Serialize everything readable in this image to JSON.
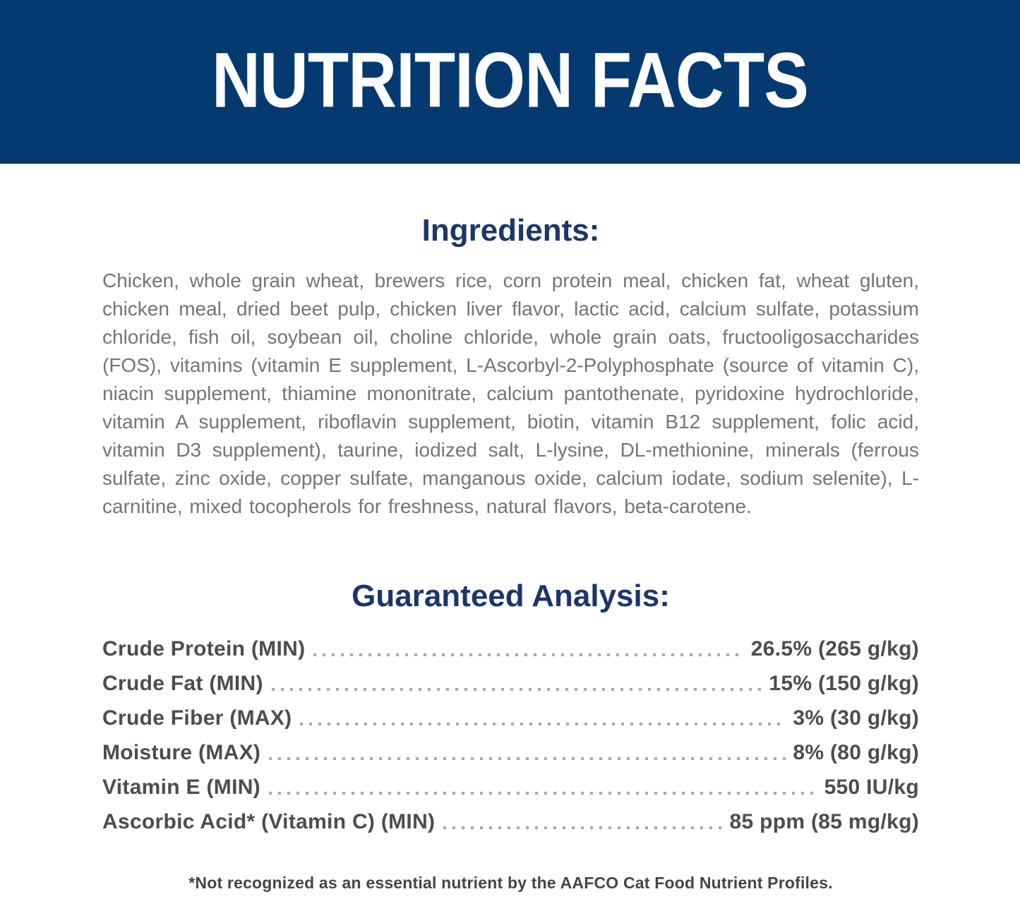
{
  "header": {
    "title": "NUTRITION FACTS"
  },
  "ingredients": {
    "heading": "Ingredients:",
    "text": "Chicken, whole grain wheat, brewers rice, corn protein meal, chicken fat, wheat gluten, chicken meal, dried beet pulp, chicken liver flavor, lactic acid, calcium sulfate, potassium chloride, fish oil, soybean oil, choline chloride, whole grain oats, fructooligosaccharides (FOS), vitamins (vitamin E supplement, L-Ascorbyl-2-Polyphosphate (source of vitamin C), niacin supplement, thiamine mononitrate, calcium pantothenate, pyridoxine hydrochloride, vitamin A supplement, riboflavin supplement, biotin, vitamin B12 supplement, folic acid, vitamin D3 supplement), taurine, iodized salt, L-lysine, DL-methionine, minerals (ferrous sulfate, zinc oxide, copper sulfate, manganous oxide, calcium iodate, sodium selenite), L-carnitine, mixed tocopherols for freshness, natural flavors, beta-carotene."
  },
  "guaranteed_analysis": {
    "heading": "Guaranteed Analysis:",
    "rows": [
      {
        "label": "Crude Protein (MIN)",
        "value": "26.5% (265 g/kg)"
      },
      {
        "label": "Crude Fat (MIN)",
        "value": "15% (150 g/kg)"
      },
      {
        "label": "Crude Fiber (MAX)",
        "value": "3% (30 g/kg)"
      },
      {
        "label": "Moisture (MAX)",
        "value": "8% (80 g/kg)"
      },
      {
        "label": "Vitamin E (MIN)",
        "value": "550 IU/kg"
      },
      {
        "label": "Ascorbic Acid* (Vitamin C) (MIN)",
        "value": "85 ppm (85 mg/kg)"
      }
    ]
  },
  "footnote": "*Not recognized as an essential nutrient by the AAFCO Cat Food Nutrient Profiles.",
  "colors": {
    "banner_blue": "#053a70",
    "banner_edge": "#16305a",
    "heading_navy": "#1c366b",
    "body_gray": "#757575",
    "row_gray": "#4d4d4d",
    "dots_gray": "#a8a8a8",
    "footnote_gray": "#454545"
  }
}
